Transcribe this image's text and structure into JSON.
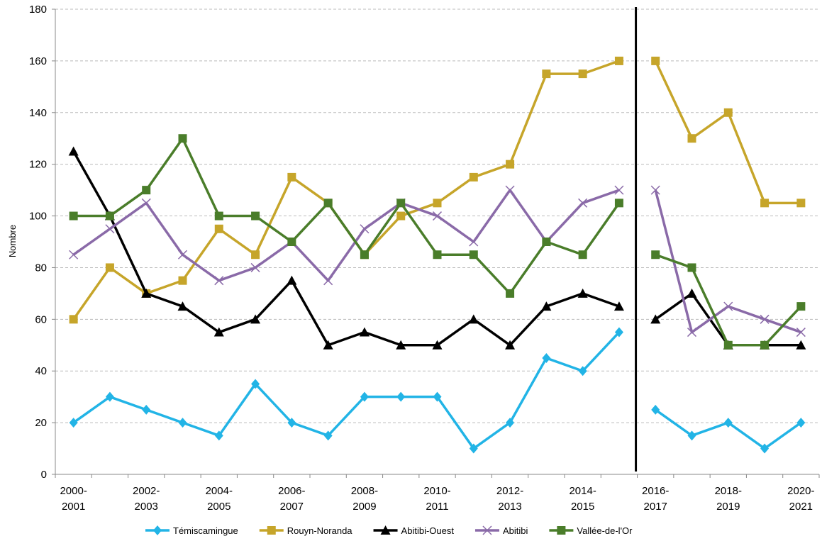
{
  "chart_data": {
    "type": "line",
    "y_label": "Nombre",
    "categories": [
      "2000-2001",
      null,
      "2002-2003",
      null,
      "2004-2005",
      null,
      "2006-2007",
      null,
      "2008-2009",
      null,
      "2010-2011",
      null,
      "2012-2013",
      null,
      "2014-2015",
      null,
      "2016-2017",
      null,
      "2018-2019",
      null,
      "2020-2021"
    ],
    "separator_index": 16,
    "ylim": [
      0,
      180
    ],
    "yticks": [
      0,
      20,
      40,
      60,
      80,
      100,
      120,
      140,
      160,
      180
    ],
    "grid": true,
    "legend": "bottom",
    "series": [
      {
        "name": "Témiscamingue",
        "color": "#22b4e6",
        "marker": "diamond",
        "values": [
          20,
          30,
          25,
          20,
          15,
          35,
          20,
          15,
          30,
          30,
          30,
          10,
          20,
          45,
          40,
          55,
          25,
          15,
          20,
          10,
          20
        ]
      },
      {
        "name": "Rouyn-Noranda",
        "color": "#c6a52a",
        "marker": "square",
        "values": [
          60,
          80,
          70,
          75,
          95,
          85,
          115,
          105,
          85,
          100,
          105,
          115,
          120,
          155,
          155,
          160,
          160,
          130,
          140,
          105,
          105
        ]
      },
      {
        "name": "Abitibi-Ouest",
        "color": "#000000",
        "marker": "triangle",
        "values": [
          125,
          100,
          70,
          65,
          55,
          60,
          75,
          50,
          55,
          50,
          50,
          60,
          50,
          65,
          70,
          65,
          60,
          70,
          50,
          50,
          50
        ]
      },
      {
        "name": "Abitibi",
        "color": "#8a6aa8",
        "marker": "x",
        "values": [
          85,
          95,
          105,
          85,
          75,
          80,
          90,
          75,
          95,
          105,
          100,
          90,
          110,
          90,
          105,
          110,
          110,
          55,
          65,
          60,
          55
        ]
      },
      {
        "name": "Vallée-de-l'Or",
        "color": "#4a7d2a",
        "marker": "square",
        "values": [
          100,
          100,
          110,
          130,
          100,
          100,
          90,
          105,
          85,
          105,
          85,
          85,
          70,
          90,
          85,
          105,
          85,
          80,
          50,
          50,
          65
        ]
      }
    ]
  }
}
